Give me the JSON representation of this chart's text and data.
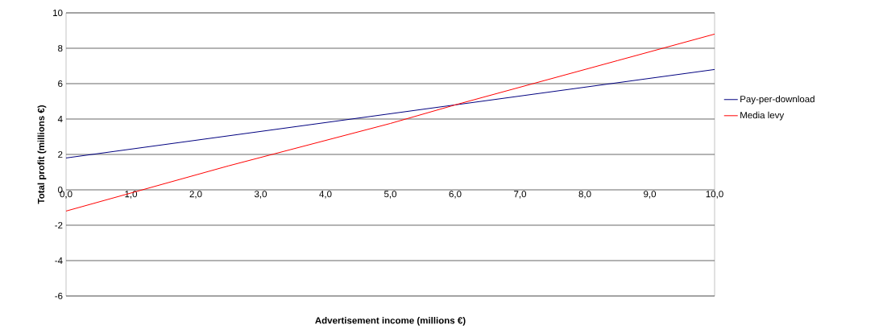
{
  "chart_data": {
    "type": "line",
    "xlabel": "Advertisement income (millions €)",
    "ylabel": "Total profit (millions €)",
    "xlim": [
      0,
      10
    ],
    "ylim": [
      -6,
      10
    ],
    "xticks": [
      {
        "value": 0,
        "label": "0,0"
      },
      {
        "value": 1,
        "label": "1,0"
      },
      {
        "value": 2,
        "label": "2,0"
      },
      {
        "value": 3,
        "label": "3,0"
      },
      {
        "value": 4,
        "label": "4,0"
      },
      {
        "value": 5,
        "label": "5,0"
      },
      {
        "value": 6,
        "label": "6,0"
      },
      {
        "value": 7,
        "label": "7,0"
      },
      {
        "value": 8,
        "label": "8,0"
      },
      {
        "value": 9,
        "label": "9,0"
      },
      {
        "value": 10,
        "label": "10,0"
      }
    ],
    "yticks": [
      -6,
      -4,
      -2,
      0,
      2,
      4,
      6,
      8,
      10
    ],
    "grid": "y",
    "legend": "right",
    "series": [
      {
        "name": "Pay-per-download",
        "color": "#000080",
        "x": [
          0,
          10
        ],
        "values": [
          1.8,
          6.8
        ]
      },
      {
        "name": "Media levy",
        "color": "#ff0000",
        "x": [
          0,
          2.5,
          5,
          6,
          8.5,
          10
        ],
        "values": [
          -1.2,
          1.35,
          3.75,
          4.8,
          7.3,
          8.8
        ]
      }
    ]
  }
}
